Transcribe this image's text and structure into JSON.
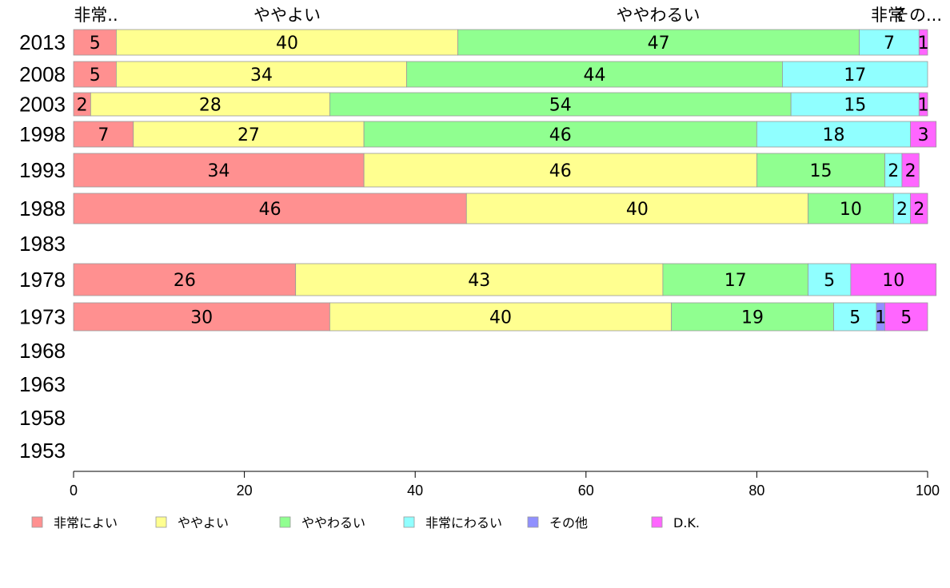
{
  "chart_data": {
    "type": "bar",
    "orientation": "horizontal",
    "stacked": true,
    "categories": [
      "2013",
      "2008",
      "2003",
      "1998",
      "1993",
      "1988",
      "1983",
      "1978",
      "1973",
      "1968",
      "1963",
      "1958",
      "1953"
    ],
    "series": [
      {
        "name": "非常によい",
        "color": "#ff9090",
        "values": [
          5,
          5,
          2,
          7,
          34,
          46,
          null,
          26,
          30,
          null,
          null,
          null,
          null
        ]
      },
      {
        "name": "ややよい",
        "color": "#ffff90",
        "values": [
          40,
          34,
          28,
          27,
          46,
          40,
          null,
          43,
          40,
          null,
          null,
          null,
          null
        ]
      },
      {
        "name": "ややわるい",
        "color": "#90ff90",
        "values": [
          47,
          44,
          54,
          46,
          15,
          10,
          null,
          17,
          19,
          null,
          null,
          null,
          null
        ]
      },
      {
        "name": "非常にわるい",
        "color": "#90ffff",
        "values": [
          7,
          17,
          15,
          18,
          2,
          2,
          null,
          5,
          5,
          null,
          null,
          null,
          null
        ]
      },
      {
        "name": "その他",
        "color": "#9090ff",
        "values": [
          0,
          0,
          0,
          0,
          0,
          0,
          null,
          0,
          1,
          null,
          null,
          null,
          null
        ]
      },
      {
        "name": "D.K.",
        "color": "#ff66ff",
        "values": [
          1,
          0,
          1,
          3,
          2,
          2,
          null,
          10,
          5,
          null,
          null,
          null,
          null
        ]
      }
    ],
    "column_headers": [
      "非常..",
      "ややよい",
      "ややわるい",
      "非常",
      "その..."
    ],
    "xlim": [
      0,
      100
    ],
    "xticks": [
      "0",
      "20",
      "40",
      "60",
      "80",
      "100"
    ],
    "legend_position": "bottom",
    "grid": false
  }
}
